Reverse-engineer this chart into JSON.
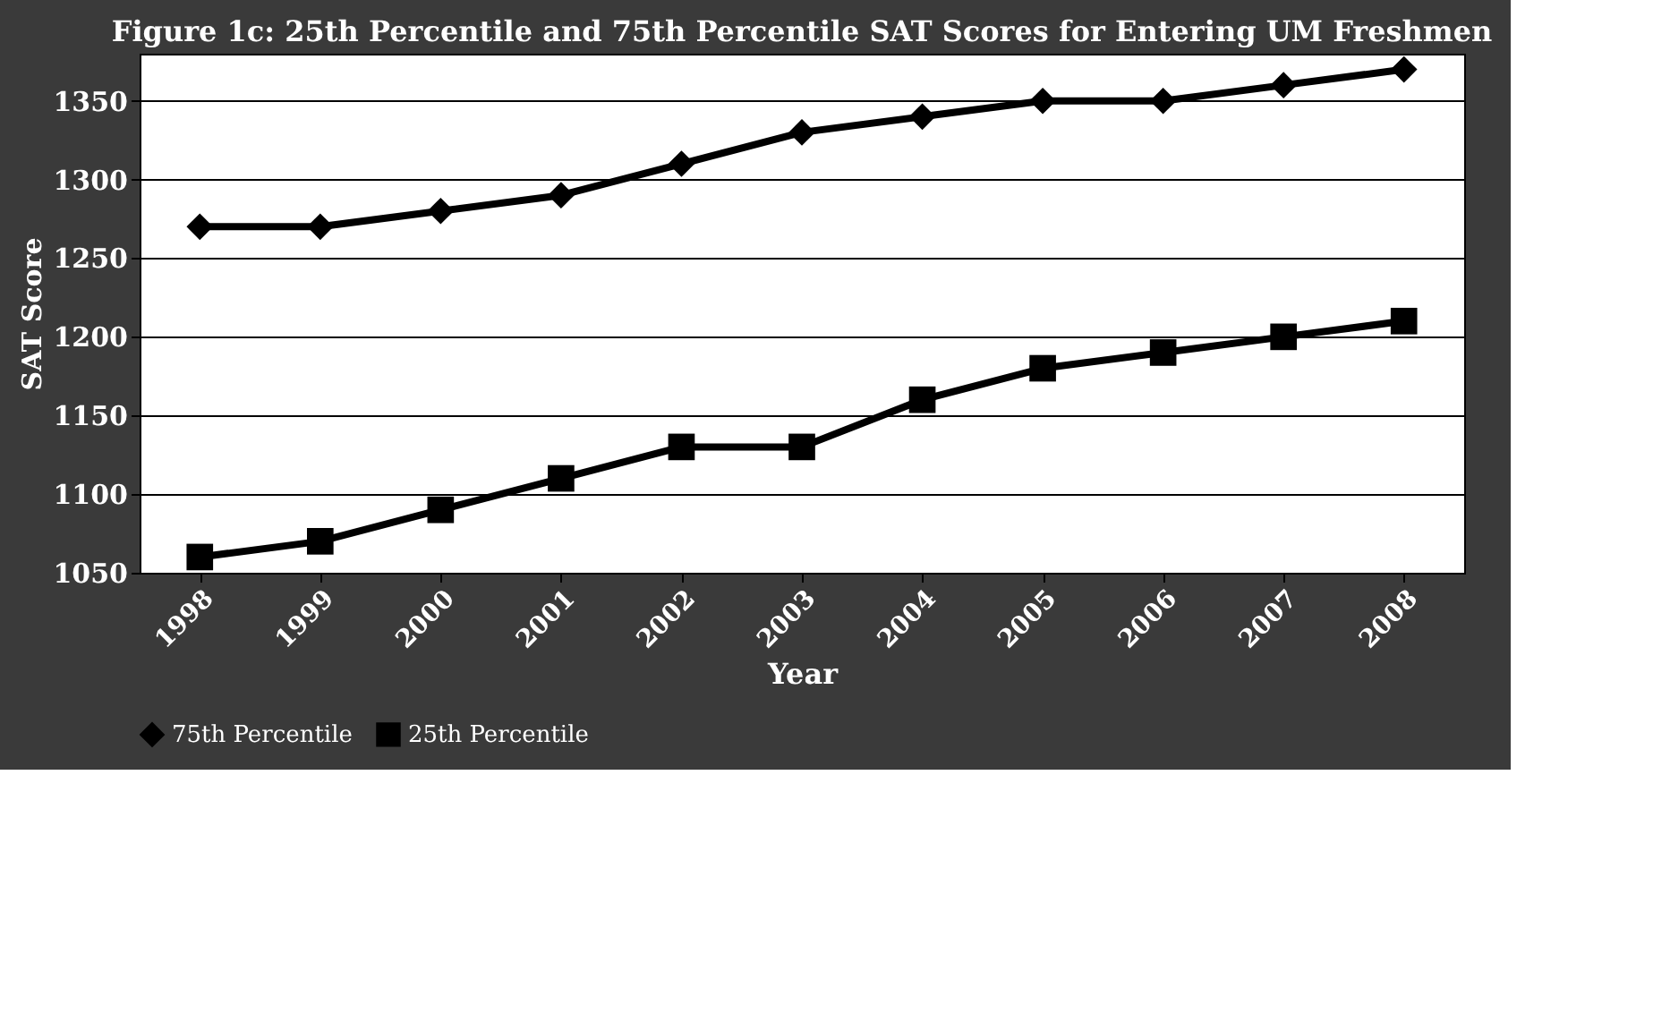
{
  "chart_data": {
    "type": "line",
    "title": "Figure 1c: 25th Percentile and 75th Percentile SAT Scores for Entering UM Freshmen",
    "xlabel": "Year",
    "ylabel": "SAT Score",
    "categories": [
      "1998",
      "1999",
      "2000",
      "2001",
      "2002",
      "2003",
      "2004",
      "2005",
      "2006",
      "2007",
      "2008"
    ],
    "series": [
      {
        "name": "75th Percentile",
        "color": "#000000",
        "marker": "diamond",
        "values": [
          1270,
          1270,
          1280,
          1290,
          1310,
          1330,
          1340,
          1350,
          1350,
          1360,
          1370
        ]
      },
      {
        "name": "25th Percentile",
        "color": "#000000",
        "marker": "square",
        "values": [
          1060,
          1070,
          1090,
          1110,
          1130,
          1130,
          1160,
          1180,
          1190,
          1200,
          1210
        ]
      }
    ],
    "ylim": [
      1050,
      1380
    ],
    "yticks": [
      1050,
      1100,
      1150,
      1200,
      1250,
      1300,
      1350
    ],
    "grid": "y",
    "legend": "bottom",
    "line_style": "solid"
  }
}
